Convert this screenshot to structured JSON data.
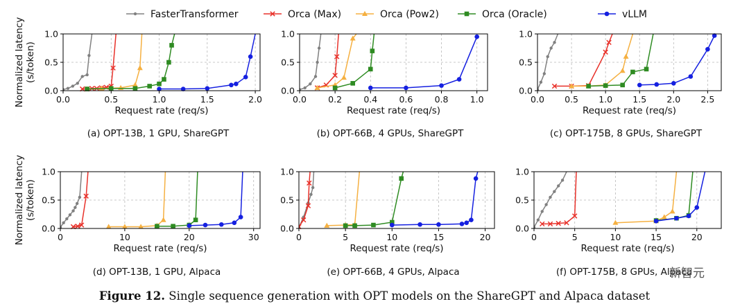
{
  "legend": [
    {
      "name": "FasterTransformer",
      "color": "#808080",
      "marker": "dot"
    },
    {
      "name": "Orca (Max)",
      "color": "#e8312a",
      "marker": "x"
    },
    {
      "name": "Orca (Pow2)",
      "color": "#f5b041",
      "marker": "triangle"
    },
    {
      "name": "Orca (Oracle)",
      "color": "#2e8b22",
      "marker": "square"
    },
    {
      "name": "vLLM",
      "color": "#1520e0",
      "marker": "circle"
    }
  ],
  "caption": {
    "label": "Figure 12.",
    "text": " Single sequence generation with OPT models on the ShareGPT and Alpaca dataset"
  },
  "watermark": "新智元",
  "chart_data": [
    {
      "type": "line",
      "subcaption": "(a) OPT-13B, 1 GPU, ShareGPT",
      "xlabel": "Request rate (req/s)",
      "ylabel": [
        "Normalized latency",
        "(s/token)"
      ],
      "xlim": [
        0,
        2.05
      ],
      "ylim": [
        0,
        1.0
      ],
      "xticks": [
        0.0,
        0.5,
        1.0,
        1.5,
        2.0
      ],
      "xtick_labels": [
        "0.0",
        "0.5",
        "1.0",
        "1.5",
        "2.0"
      ],
      "yticks": [
        0.0,
        0.5,
        1.0
      ],
      "ytick_labels": [
        "0.0",
        "0.5",
        "1.0"
      ],
      "series": [
        {
          "name": "FasterTransformer",
          "x": [
            0.0,
            0.05,
            0.1,
            0.15,
            0.2,
            0.25,
            0.27,
            0.3
          ],
          "y": [
            0.02,
            0.04,
            0.08,
            0.13,
            0.25,
            0.28,
            0.62,
            1.0
          ]
        },
        {
          "name": "Orca (Max)",
          "x": [
            0.2,
            0.25,
            0.3,
            0.35,
            0.4,
            0.45,
            0.5,
            0.52,
            0.55
          ],
          "y": [
            0.03,
            0.03,
            0.04,
            0.04,
            0.05,
            0.06,
            0.08,
            0.4,
            1.0
          ]
        },
        {
          "name": "Orca (Pow2)",
          "x": [
            0.25,
            0.4,
            0.6,
            0.75,
            0.8,
            0.82
          ],
          "y": [
            0.03,
            0.04,
            0.05,
            0.1,
            0.4,
            1.0
          ]
        },
        {
          "name": "Orca (Oracle)",
          "x": [
            0.25,
            0.5,
            0.75,
            0.9,
            1.0,
            1.05,
            1.1,
            1.13,
            1.16
          ],
          "y": [
            0.03,
            0.04,
            0.04,
            0.08,
            0.12,
            0.2,
            0.5,
            0.8,
            1.0
          ]
        },
        {
          "name": "vLLM",
          "x": [
            1.0,
            1.25,
            1.5,
            1.75,
            1.8,
            1.9,
            1.95,
            2.0
          ],
          "y": [
            0.03,
            0.03,
            0.04,
            0.1,
            0.12,
            0.24,
            0.6,
            1.0
          ]
        }
      ]
    },
    {
      "type": "line",
      "subcaption": "(b) OPT-66B, 4 GPUs, ShareGPT",
      "xlabel": "Request rate (req/s)",
      "ylabel": [],
      "xlim": [
        0,
        1.06
      ],
      "ylim": [
        0,
        1.0
      ],
      "xticks": [
        0.0,
        0.2,
        0.4,
        0.6,
        0.8,
        1.0
      ],
      "xtick_labels": [
        "0.0",
        "0.2",
        "0.4",
        "0.6",
        "0.8",
        "1.0"
      ],
      "yticks": [
        0.0,
        0.5,
        1.0
      ],
      "ytick_labels": [
        "0.0",
        "0.5",
        "1.0"
      ],
      "series": [
        {
          "name": "FasterTransformer",
          "x": [
            0.0,
            0.03,
            0.06,
            0.09,
            0.1,
            0.11,
            0.12
          ],
          "y": [
            0.02,
            0.05,
            0.12,
            0.25,
            0.5,
            0.75,
            1.0
          ]
        },
        {
          "name": "Orca (Max)",
          "x": [
            0.1,
            0.15,
            0.2,
            0.21,
            0.22
          ],
          "y": [
            0.05,
            0.1,
            0.27,
            0.6,
            1.0
          ]
        },
        {
          "name": "Orca (Pow2)",
          "x": [
            0.1,
            0.2,
            0.25,
            0.3,
            0.32
          ],
          "y": [
            0.05,
            0.1,
            0.23,
            0.92,
            1.0
          ]
        },
        {
          "name": "Orca (Oracle)",
          "x": [
            0.2,
            0.3,
            0.4,
            0.41,
            0.42
          ],
          "y": [
            0.05,
            0.13,
            0.38,
            0.7,
            1.0
          ]
        },
        {
          "name": "vLLM",
          "x": [
            0.4,
            0.6,
            0.8,
            0.9,
            1.0
          ],
          "y": [
            0.05,
            0.05,
            0.09,
            0.2,
            0.95
          ]
        }
      ]
    },
    {
      "type": "line",
      "subcaption": "(c) OPT-175B, 8 GPUs, ShareGPT",
      "xlabel": "Request rate (req/s)",
      "ylabel": [],
      "xlim": [
        0,
        2.7
      ],
      "ylim": [
        0,
        1.0
      ],
      "xticks": [
        0.0,
        0.5,
        1.0,
        1.5,
        2.0,
        2.5
      ],
      "xtick_labels": [
        "0.0",
        "0.5",
        "1.0",
        "1.5",
        "2.0",
        "2.5"
      ],
      "yticks": [
        0.0,
        0.5,
        1.0
      ],
      "ytick_labels": [
        "0.0",
        "0.5",
        "1.0"
      ],
      "series": [
        {
          "name": "FasterTransformer",
          "x": [
            0.0,
            0.05,
            0.1,
            0.15,
            0.2,
            0.25,
            0.3
          ],
          "y": [
            0.02,
            0.15,
            0.3,
            0.6,
            0.75,
            0.85,
            1.0
          ]
        },
        {
          "name": "Orca (Max)",
          "x": [
            0.25,
            0.5,
            0.75,
            1.0,
            1.05,
            1.1
          ],
          "y": [
            0.08,
            0.08,
            0.09,
            0.68,
            0.85,
            1.0
          ]
        },
        {
          "name": "Orca (Pow2)",
          "x": [
            0.5,
            0.75,
            1.0,
            1.25,
            1.3,
            1.4
          ],
          "y": [
            0.08,
            0.08,
            0.1,
            0.35,
            0.6,
            1.0
          ]
        },
        {
          "name": "Orca (Oracle)",
          "x": [
            0.75,
            1.0,
            1.25,
            1.4,
            1.6,
            1.7
          ],
          "y": [
            0.08,
            0.09,
            0.1,
            0.33,
            0.38,
            1.0
          ]
        },
        {
          "name": "vLLM",
          "x": [
            1.5,
            1.75,
            2.0,
            2.25,
            2.5,
            2.6
          ],
          "y": [
            0.1,
            0.11,
            0.13,
            0.25,
            0.73,
            0.97
          ]
        }
      ]
    },
    {
      "type": "line",
      "subcaption": "(d) OPT-13B, 1 GPU, Alpaca",
      "xlabel": "Request rate (req/s)",
      "ylabel": [
        "Normalized latency",
        "(s/token)"
      ],
      "xlim": [
        0,
        31
      ],
      "ylim": [
        0,
        1.0
      ],
      "xticks": [
        0,
        10,
        20,
        30
      ],
      "xtick_labels": [
        "0",
        "10",
        "20",
        "30"
      ],
      "yticks": [
        0.0,
        0.5,
        1.0
      ],
      "ytick_labels": [
        "0.0",
        "0.5",
        "1.0"
      ],
      "series": [
        {
          "name": "FasterTransformer",
          "x": [
            0.0,
            0.5,
            1.0,
            1.5,
            2.0,
            2.3,
            2.6,
            3.0,
            3.3
          ],
          "y": [
            0.02,
            0.1,
            0.17,
            0.24,
            0.31,
            0.37,
            0.44,
            0.55,
            1.0
          ]
        },
        {
          "name": "Orca (Max)",
          "x": [
            2.0,
            2.7,
            3.3,
            4.0,
            4.3
          ],
          "y": [
            0.03,
            0.04,
            0.06,
            0.57,
            1.0
          ]
        },
        {
          "name": "Orca (Pow2)",
          "x": [
            7.5,
            10.0,
            12.5,
            15.0,
            16.0,
            16.3
          ],
          "y": [
            0.03,
            0.03,
            0.03,
            0.05,
            0.15,
            1.0
          ]
        },
        {
          "name": "Orca (Oracle)",
          "x": [
            15.0,
            17.5,
            20.0,
            21.0,
            21.3
          ],
          "y": [
            0.04,
            0.04,
            0.06,
            0.15,
            1.0
          ]
        },
        {
          "name": "vLLM",
          "x": [
            20.0,
            22.5,
            25.0,
            27.0,
            28.0,
            28.3
          ],
          "y": [
            0.05,
            0.06,
            0.07,
            0.1,
            0.2,
            1.0
          ]
        }
      ]
    },
    {
      "type": "line",
      "subcaption": "(e) OPT-66B, 4 GPUs, Alpaca",
      "xlabel": "Request rate (req/s)",
      "ylabel": [],
      "xlim": [
        0,
        21
      ],
      "ylim": [
        0,
        1.0
      ],
      "xticks": [
        0,
        5,
        10,
        15,
        20
      ],
      "xtick_labels": [
        "0",
        "5",
        "10",
        "15",
        "20"
      ],
      "yticks": [
        0.0,
        0.5,
        1.0
      ],
      "ytick_labels": [
        "0.0",
        "0.5",
        "1.0"
      ],
      "series": [
        {
          "name": "FasterTransformer",
          "x": [
            0.0,
            0.5,
            1.0,
            1.3,
            1.5,
            1.6
          ],
          "y": [
            0.02,
            0.2,
            0.45,
            0.6,
            0.72,
            1.0
          ]
        },
        {
          "name": "Orca (Max)",
          "x": [
            0.0,
            0.5,
            1.0,
            1.1,
            1.2
          ],
          "y": [
            0.03,
            0.15,
            0.4,
            0.8,
            1.0
          ]
        },
        {
          "name": "Orca (Pow2)",
          "x": [
            3.0,
            5.0,
            6.0,
            6.5
          ],
          "y": [
            0.05,
            0.06,
            0.07,
            1.0
          ]
        },
        {
          "name": "Orca (Oracle)",
          "x": [
            5.0,
            6.0,
            8.0,
            10.0,
            11.0,
            11.2
          ],
          "y": [
            0.05,
            0.05,
            0.06,
            0.11,
            0.88,
            1.0
          ]
        },
        {
          "name": "vLLM",
          "x": [
            10.0,
            13.0,
            15.0,
            17.5,
            18.0,
            18.5,
            19.0,
            19.2
          ],
          "y": [
            0.06,
            0.07,
            0.07,
            0.08,
            0.1,
            0.15,
            0.88,
            1.0
          ]
        }
      ]
    },
    {
      "type": "line",
      "subcaption": "(f) OPT-175B, 8 GPUs, Alpaca",
      "xlabel": "Request rate (req/s)",
      "ylabel": [],
      "xlim": [
        0,
        23
      ],
      "ylim": [
        0,
        1.0
      ],
      "xticks": [
        0,
        5,
        10,
        15,
        20
      ],
      "xtick_labels": [
        "0",
        "5",
        "10",
        "15",
        "20"
      ],
      "yticks": [
        0.0,
        0.5,
        1.0
      ],
      "ytick_labels": [
        "0.0",
        "0.5",
        "1.0"
      ],
      "series": [
        {
          "name": "FasterTransformer",
          "x": [
            0.0,
            0.5,
            1.0,
            1.5,
            2.0,
            2.5,
            3.0,
            3.5,
            4.0
          ],
          "y": [
            0.02,
            0.15,
            0.3,
            0.42,
            0.55,
            0.65,
            0.75,
            0.85,
            1.0
          ]
        },
        {
          "name": "Orca (Max)",
          "x": [
            1.0,
            2.0,
            3.0,
            4.0,
            5.0,
            5.2
          ],
          "y": [
            0.08,
            0.08,
            0.09,
            0.1,
            0.22,
            1.0
          ]
        },
        {
          "name": "Orca (Pow2)",
          "x": [
            10.0,
            15.0,
            16.0,
            17.0,
            17.5
          ],
          "y": [
            0.1,
            0.13,
            0.2,
            0.3,
            1.0
          ]
        },
        {
          "name": "Orca (Oracle)",
          "x": [
            15.0,
            17.5,
            19.0,
            19.5
          ],
          "y": [
            0.14,
            0.18,
            0.23,
            1.0
          ]
        },
        {
          "name": "vLLM",
          "x": [
            15.0,
            17.5,
            19.0,
            20.0,
            21.0
          ],
          "y": [
            0.13,
            0.18,
            0.22,
            0.37,
            1.0
          ]
        }
      ]
    }
  ]
}
